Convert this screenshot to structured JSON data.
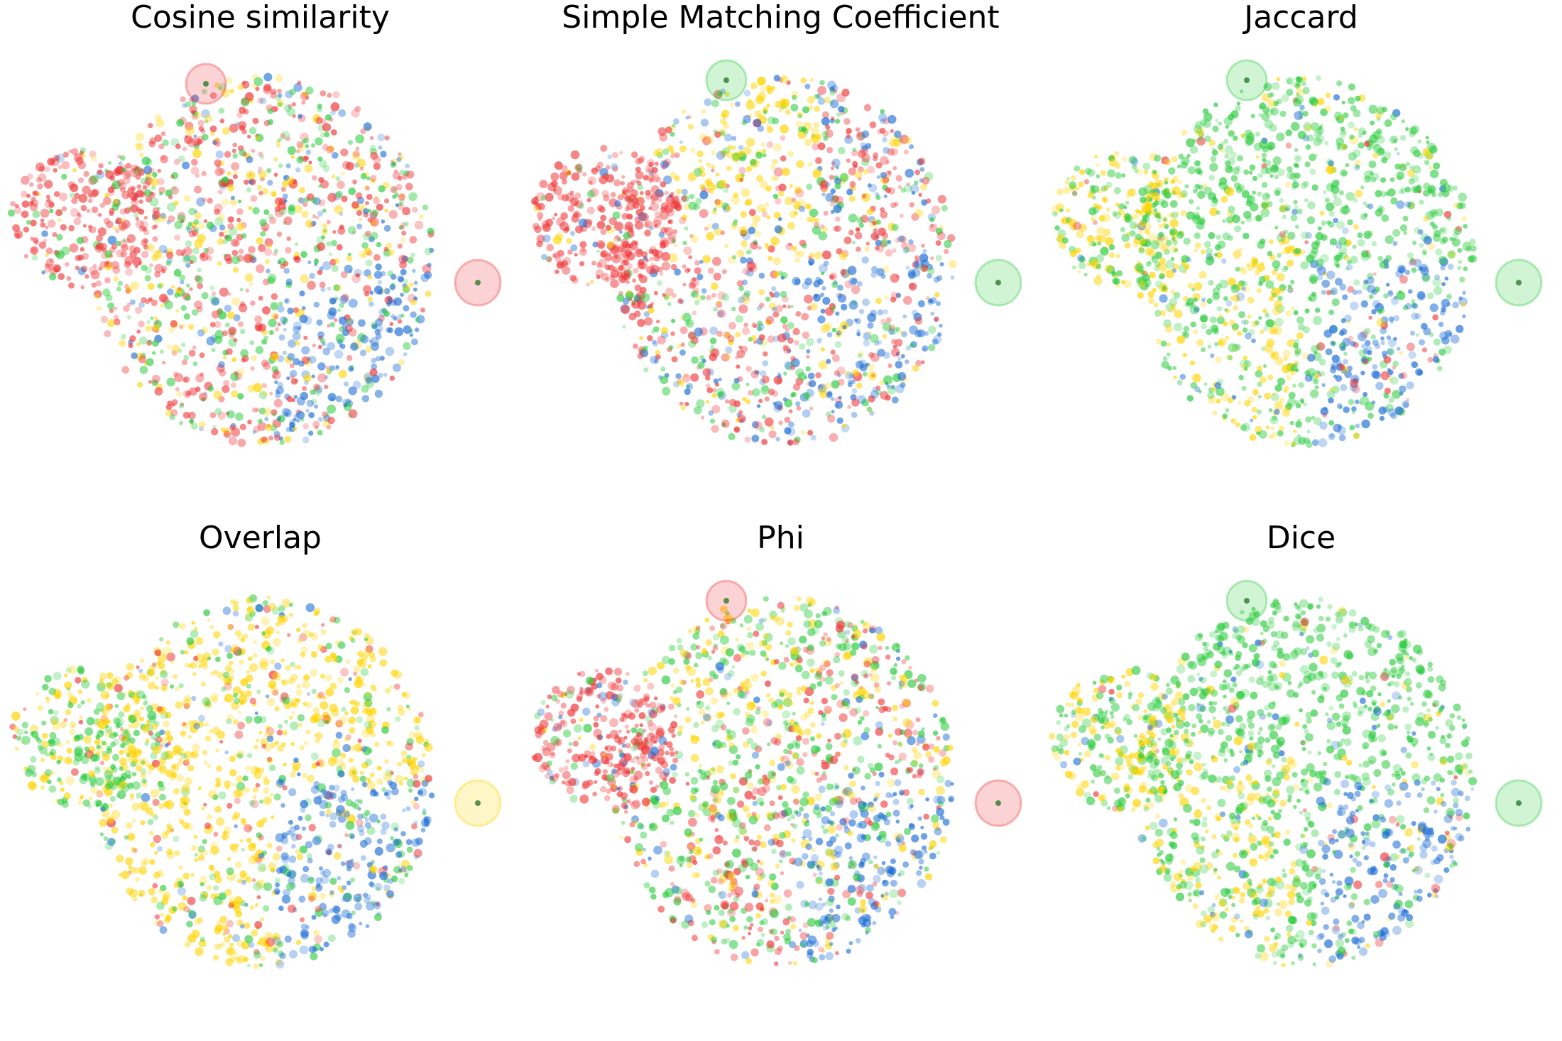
{
  "figure": {
    "colors": {
      "red": "#f0383a",
      "yellow": "#ffd400",
      "green": "#2ecc40",
      "blue": "#1f6fd6"
    }
  },
  "chart_data": [
    {
      "type": "scatter",
      "title": "Cosine similarity",
      "dominant_colors": {
        "red": 0.45,
        "green": 0.2,
        "yellow": 0.15,
        "blue": 0.2
      },
      "region_notes": [
        "left lobe red",
        "center mixed red/yellow/green",
        "lower-right blue"
      ],
      "highlight_circles": [
        {
          "color": "red",
          "where": "right edge"
        },
        {
          "color": "red",
          "where": "top-left"
        }
      ]
    },
    {
      "type": "scatter",
      "title": "Simple Matching Coefficient",
      "dominant_colors": {
        "red": 0.4,
        "green": 0.18,
        "yellow": 0.17,
        "blue": 0.25
      },
      "region_notes": [
        "left lobe red",
        "upper-center yellow",
        "center-lower red",
        "right blue"
      ],
      "highlight_circles": [
        {
          "color": "green",
          "where": "right edge"
        },
        {
          "color": "green",
          "where": "top"
        }
      ]
    },
    {
      "type": "scatter",
      "title": "Jaccard",
      "dominant_colors": {
        "green": 0.55,
        "yellow": 0.18,
        "blue": 0.22,
        "red": 0.05
      },
      "region_notes": [
        "mostly green",
        "left lobe yellow-green",
        "lower-right blue"
      ],
      "highlight_circles": [
        {
          "color": "green",
          "where": "right edge"
        },
        {
          "color": "green",
          "where": "top"
        }
      ]
    },
    {
      "type": "scatter",
      "title": "Overlap",
      "dominant_colors": {
        "yellow": 0.45,
        "green": 0.2,
        "blue": 0.25,
        "red": 0.1
      },
      "region_notes": [
        "mostly yellow",
        "lower-right blue"
      ],
      "highlight_circles": [
        {
          "color": "yellow",
          "where": "right edge"
        }
      ]
    },
    {
      "type": "scatter",
      "title": "Phi",
      "dominant_colors": {
        "red": 0.3,
        "green": 0.25,
        "yellow": 0.2,
        "blue": 0.25
      },
      "region_notes": [
        "left lobe red",
        "upper-center yellow/green",
        "lower-right blue"
      ],
      "highlight_circles": [
        {
          "color": "red",
          "where": "right edge"
        },
        {
          "color": "red",
          "where": "top"
        }
      ]
    },
    {
      "type": "scatter",
      "title": "Dice",
      "dominant_colors": {
        "green": 0.55,
        "yellow": 0.18,
        "blue": 0.22,
        "red": 0.05
      },
      "region_notes": [
        "mostly green",
        "left lobe yellow-green",
        "lower-right blue"
      ],
      "highlight_circles": [
        {
          "color": "green",
          "where": "right edge"
        },
        {
          "color": "green",
          "where": "top"
        }
      ]
    }
  ]
}
